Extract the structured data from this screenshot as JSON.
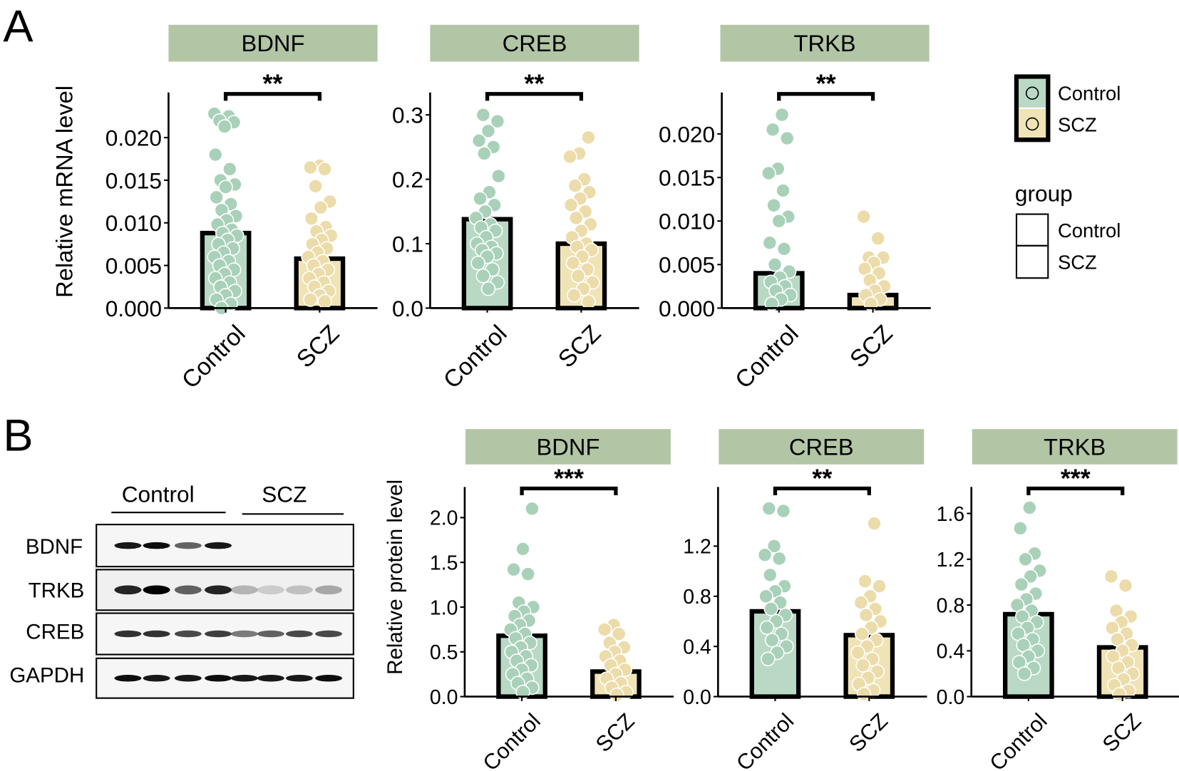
{
  "panel_labels": {
    "a": "A",
    "b": "B"
  },
  "colors": {
    "control": "#b9d9c5",
    "control_point": "#a9d1b9",
    "scz": "#f0e3b6",
    "scz_point": "#ecdcaa",
    "strip": "#b2c6a6"
  },
  "legend": {
    "fill_items": [
      "Control",
      "SCZ"
    ],
    "group_title": "group",
    "group_items": [
      "Control",
      "SCZ"
    ]
  },
  "blot": {
    "groups": [
      "Control",
      "SCZ"
    ],
    "rows": [
      "BDNF",
      "TRKB",
      "CREB",
      "GAPDH"
    ]
  },
  "chart_data": [
    {
      "type": "bar",
      "panel": "A",
      "title": "BDNF",
      "ylabel": "Relative mRNA level",
      "categories": [
        "Control",
        "SCZ"
      ],
      "values": [
        0.0088,
        0.0058
      ],
      "ylim": [
        0,
        0.0238
      ],
      "yticks": [
        "0.000",
        "0.005",
        "0.010",
        "0.015",
        "0.020"
      ],
      "ytick_values": [
        0,
        0.005,
        0.01,
        0.015,
        0.02
      ],
      "significance": "**",
      "points": [
        [
          0.0228,
          0.0225,
          0.022,
          0.0218,
          0.0213,
          0.018,
          0.0163,
          0.015,
          0.0145,
          0.0142,
          0.013,
          0.0122,
          0.0115,
          0.0108,
          0.0103,
          0.0098,
          0.0092,
          0.0088,
          0.0085,
          0.008,
          0.0075,
          0.007,
          0.0065,
          0.006,
          0.0055,
          0.005,
          0.0045,
          0.004,
          0.0035,
          0.003,
          0.0025,
          0.002,
          0.0015,
          0.001,
          0.0005,
          0.0
        ],
        [
          0.0167,
          0.0165,
          0.0163,
          0.0143,
          0.0125,
          0.0118,
          0.0105,
          0.0095,
          0.009,
          0.0085,
          0.008,
          0.0075,
          0.007,
          0.0065,
          0.006,
          0.0055,
          0.005,
          0.0045,
          0.004,
          0.0035,
          0.003,
          0.0025,
          0.002,
          0.0015,
          0.001,
          0.0008
        ]
      ]
    },
    {
      "type": "bar",
      "panel": "A",
      "title": "CREB",
      "ylabel": "",
      "categories": [
        "Control",
        "SCZ"
      ],
      "values": [
        0.138,
        0.1
      ],
      "ylim": [
        0,
        0.315
      ],
      "yticks": [
        "0.0",
        "0.1",
        "0.2",
        "0.3"
      ],
      "ytick_values": [
        0,
        0.1,
        0.2,
        0.3
      ],
      "significance": "**",
      "points": [
        [
          0.3,
          0.29,
          0.275,
          0.26,
          0.25,
          0.24,
          0.205,
          0.18,
          0.17,
          0.16,
          0.15,
          0.14,
          0.13,
          0.125,
          0.12,
          0.11,
          0.1,
          0.095,
          0.09,
          0.085,
          0.08,
          0.07,
          0.06,
          0.05,
          0.04,
          0.03
        ],
        [
          0.265,
          0.24,
          0.235,
          0.2,
          0.19,
          0.18,
          0.17,
          0.16,
          0.15,
          0.14,
          0.13,
          0.12,
          0.11,
          0.1,
          0.095,
          0.09,
          0.08,
          0.07,
          0.06,
          0.05,
          0.04,
          0.03,
          0.02,
          0.01
        ]
      ]
    },
    {
      "type": "bar",
      "panel": "A",
      "title": "TRKB",
      "ylabel": "",
      "categories": [
        "Control",
        "SCZ"
      ],
      "values": [
        0.004,
        0.0015
      ],
      "ylim": [
        0,
        0.0233
      ],
      "yticks": [
        "0.000",
        "0.005",
        "0.010",
        "0.015",
        "0.020"
      ],
      "ytick_values": [
        0,
        0.005,
        0.01,
        0.015,
        0.02
      ],
      "significance": "**",
      "points": [
        [
          0.0222,
          0.0205,
          0.0195,
          0.016,
          0.0155,
          0.0135,
          0.0118,
          0.0105,
          0.01,
          0.0075,
          0.0068,
          0.005,
          0.0042,
          0.0035,
          0.003,
          0.0025,
          0.002,
          0.0015,
          0.001,
          0.0005
        ],
        [
          0.0105,
          0.008,
          0.0058,
          0.0058,
          0.0052,
          0.0045,
          0.004,
          0.0032,
          0.0025,
          0.002,
          0.0015,
          0.001,
          0.0005
        ]
      ]
    },
    {
      "type": "bar",
      "panel": "B",
      "title": "BDNF",
      "ylabel": "Relative protein level",
      "categories": [
        "Control",
        "SCZ"
      ],
      "values": [
        0.68,
        0.28
      ],
      "ylim": [
        0,
        2.2
      ],
      "yticks": [
        "0.0",
        "0.5",
        "1.0",
        "1.5",
        "2.0"
      ],
      "ytick_values": [
        0,
        0.5,
        1,
        1.5,
        2
      ],
      "significance": "***",
      "points": [
        [
          2.1,
          1.65,
          1.42,
          1.37,
          1.05,
          1.0,
          0.95,
          0.9,
          0.85,
          0.8,
          0.75,
          0.7,
          0.65,
          0.6,
          0.55,
          0.5,
          0.45,
          0.4,
          0.35,
          0.3,
          0.25,
          0.2,
          0.15,
          0.1,
          0.05
        ],
        [
          0.8,
          0.75,
          0.7,
          0.6,
          0.55,
          0.5,
          0.45,
          0.4,
          0.35,
          0.3,
          0.25,
          0.2,
          0.15,
          0.1,
          0.05,
          0.02
        ]
      ]
    },
    {
      "type": "bar",
      "panel": "B",
      "title": "CREB",
      "ylabel": "",
      "categories": [
        "Control",
        "SCZ"
      ],
      "values": [
        0.68,
        0.49
      ],
      "ylim": [
        0,
        1.57
      ],
      "yticks": [
        "0.0",
        "0.4",
        "0.8",
        "1.2"
      ],
      "ytick_values": [
        0,
        0.4,
        0.8,
        1.2
      ],
      "significance": "**",
      "points": [
        [
          1.5,
          1.48,
          1.2,
          1.13,
          1.1,
          0.97,
          0.88,
          0.84,
          0.8,
          0.75,
          0.7,
          0.65,
          0.6,
          0.55,
          0.5,
          0.45,
          0.4,
          0.35,
          0.3
        ],
        [
          1.38,
          0.92,
          0.88,
          0.8,
          0.75,
          0.7,
          0.65,
          0.6,
          0.55,
          0.5,
          0.45,
          0.4,
          0.35,
          0.3,
          0.25,
          0.2,
          0.15,
          0.1,
          0.05,
          0.02
        ]
      ]
    },
    {
      "type": "bar",
      "panel": "B",
      "title": "TRKB",
      "ylabel": "",
      "categories": [
        "Control",
        "SCZ"
      ],
      "values": [
        0.72,
        0.43
      ],
      "ylim": [
        0,
        1.72
      ],
      "yticks": [
        "0.0",
        "0.4",
        "0.8",
        "1.2",
        "1.6"
      ],
      "ytick_values": [
        0,
        0.4,
        0.8,
        1.2,
        1.6
      ],
      "significance": "***",
      "points": [
        [
          1.65,
          1.47,
          1.25,
          1.2,
          1.1,
          1.05,
          0.98,
          0.9,
          0.85,
          0.8,
          0.75,
          0.7,
          0.65,
          0.6,
          0.55,
          0.5,
          0.45,
          0.4,
          0.35,
          0.3,
          0.25,
          0.2
        ],
        [
          1.05,
          0.97,
          0.75,
          0.7,
          0.65,
          0.6,
          0.55,
          0.5,
          0.45,
          0.4,
          0.35,
          0.3,
          0.25,
          0.2,
          0.15,
          0.1,
          0.05,
          0.02
        ]
      ]
    }
  ]
}
